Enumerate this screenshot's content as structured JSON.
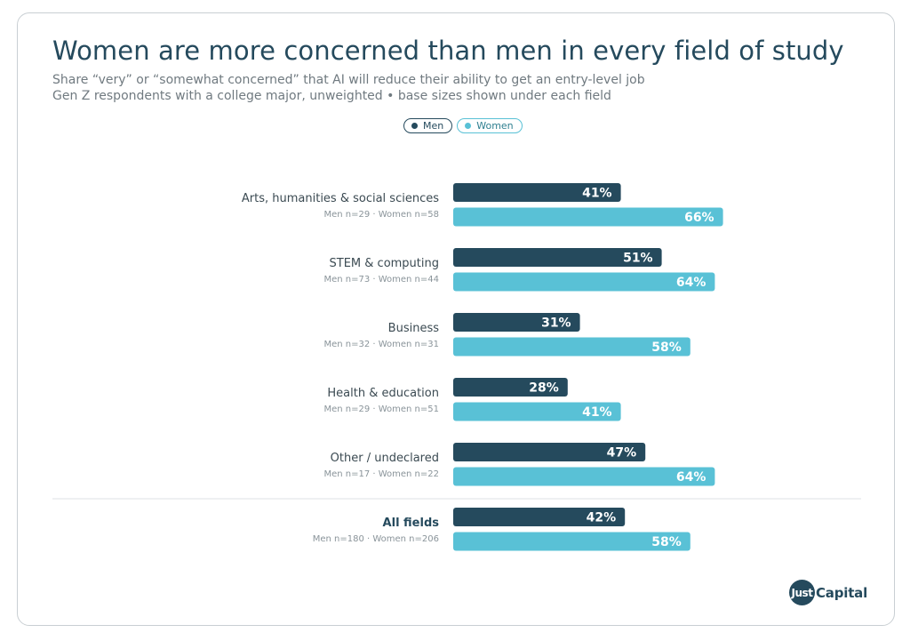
{
  "header": {
    "title": "Women are more concerned than men in every field of study",
    "subtitle": "Share “very” or “somewhat concerned” that AI will reduce their ability to get an entry-level job",
    "note": "Gen Z respondents with a college major, unweighted • base sizes shown under each field"
  },
  "logo": {
    "badge": "Just",
    "text": "Capital"
  },
  "colors": {
    "men": "#254a5d",
    "women": "#59c1d6",
    "label": "#3b4a52",
    "base": "#8a949a"
  },
  "chart_data": {
    "type": "bar",
    "orientation": "horizontal",
    "title": "Women are more concerned than men in every field of study",
    "xlabel": "",
    "ylabel": "",
    "xlim": [
      0,
      100
    ],
    "grid": false,
    "legend": "top-center",
    "categories": [
      "Arts, humanities & social sciences",
      "STEM & computing",
      "Business",
      "Health & education",
      "Other / undeclared",
      "All fields"
    ],
    "base_sizes": [
      "Men n=29 · Women n=58",
      "Men n=73 · Women n=44",
      "Men n=32 · Women n=31",
      "Men n=29 · Women n=51",
      "Men n=17 · Women n=22",
      "Men n=180 · Women n=206"
    ],
    "series": [
      {
        "name": "Men",
        "values": [
          41,
          51,
          31,
          28,
          47,
          42
        ]
      },
      {
        "name": "Women",
        "values": [
          66,
          64,
          58,
          41,
          64,
          58
        ]
      }
    ],
    "value_labels": {
      "Men": [
        "41%",
        "51%",
        "31%",
        "28%",
        "47%",
        "42%"
      ],
      "Women": [
        "66%",
        "64%",
        "58%",
        "41%",
        "64%",
        "58%"
      ]
    },
    "total_category_index": 5
  }
}
